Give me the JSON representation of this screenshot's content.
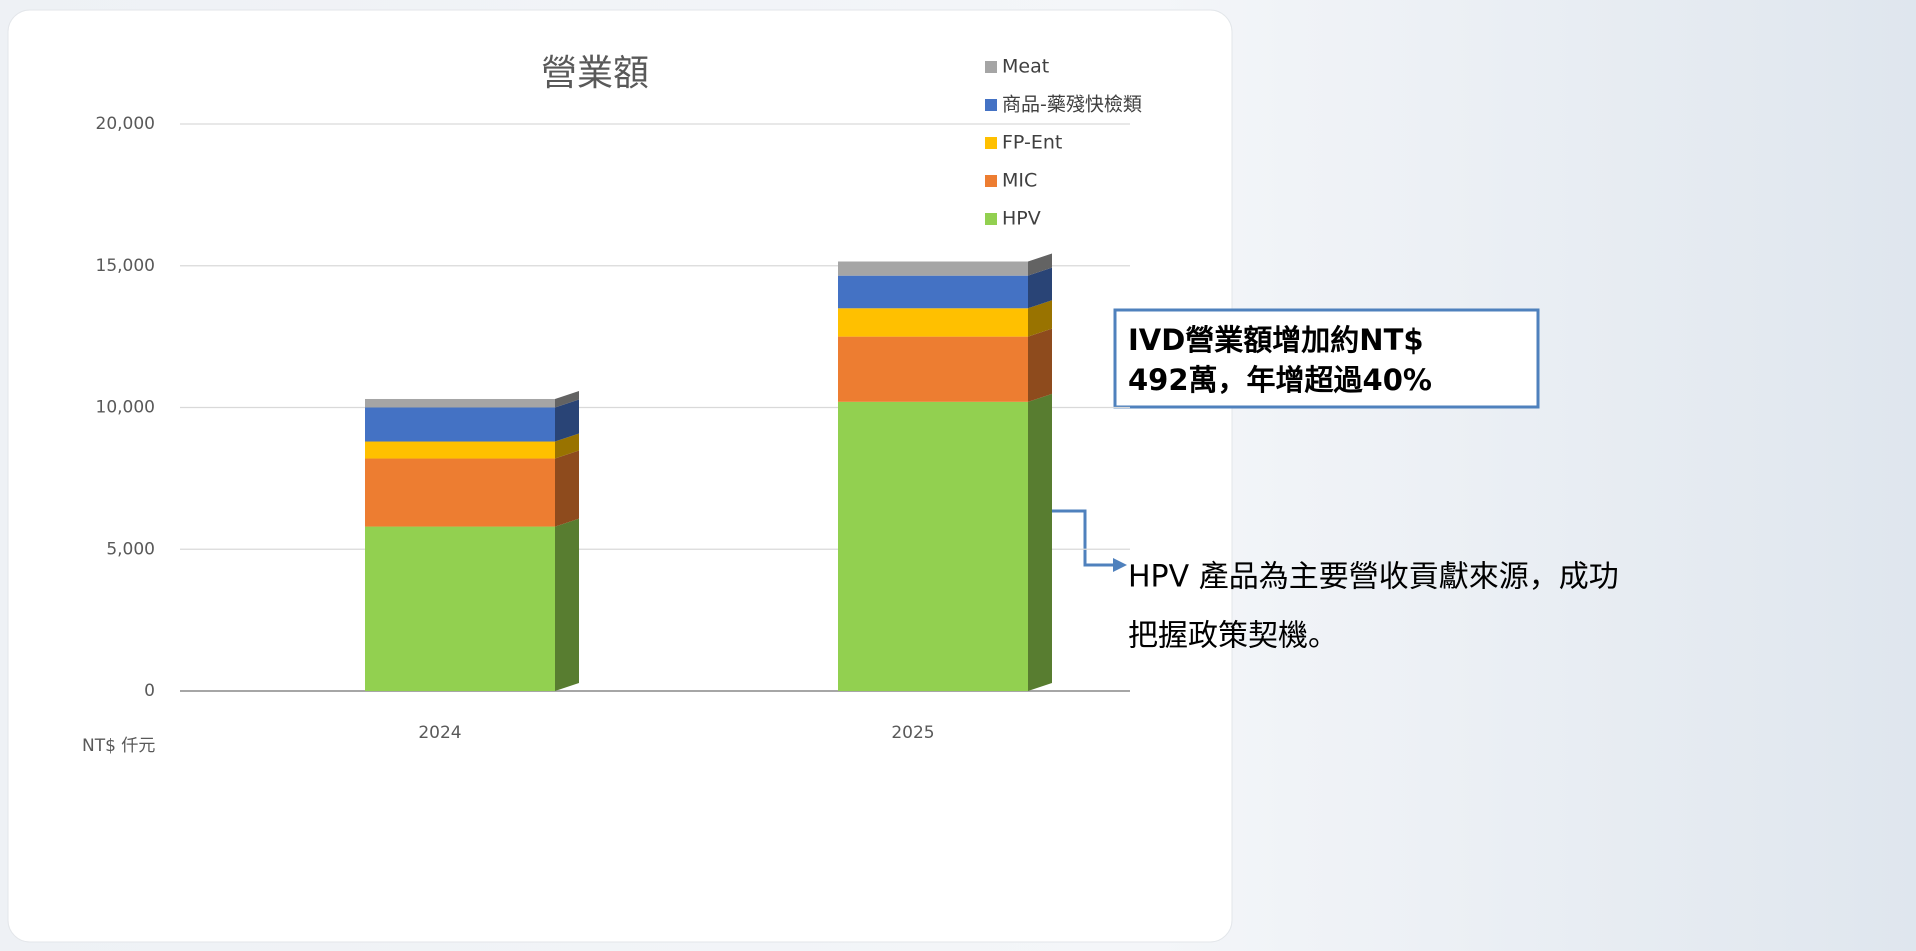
{
  "chart_data": {
    "type": "bar",
    "stacked": true,
    "title": "營業額",
    "y_label": "NT$ 仟元",
    "categories": [
      "2024",
      "2025"
    ],
    "series": [
      {
        "name": "HPV",
        "color": "#92d050",
        "values": [
          5800,
          10200
        ]
      },
      {
        "name": "MIC",
        "color": "#ed7d31",
        "values": [
          2400,
          2300
        ]
      },
      {
        "name": "FP-Ent",
        "color": "#ffc000",
        "values": [
          600,
          1000
        ]
      },
      {
        "name": "商品-藥殘快檢類",
        "color": "#4472c4",
        "values": [
          1200,
          1150
        ]
      },
      {
        "name": "Meat",
        "color": "#a5a5a5",
        "values": [
          300,
          500
        ]
      }
    ],
    "ylim": [
      0,
      20000
    ],
    "yticks": [
      0,
      {
        "value": 5000,
        "label": "5,000"
      },
      {
        "value": 10000,
        "label": "10,000"
      },
      {
        "value": 15000,
        "label": "15,000"
      },
      {
        "value": 20000,
        "label": "20,000"
      }
    ],
    "grid": true,
    "legend": "upper right",
    "annotations": {
      "box": [
        "IVD營業額增加約NT$",
        "492萬，年增超過40%"
      ],
      "note": [
        "HPV 產品為主要營收貢獻來源，成功",
        "把握政策契機。"
      ]
    }
  }
}
